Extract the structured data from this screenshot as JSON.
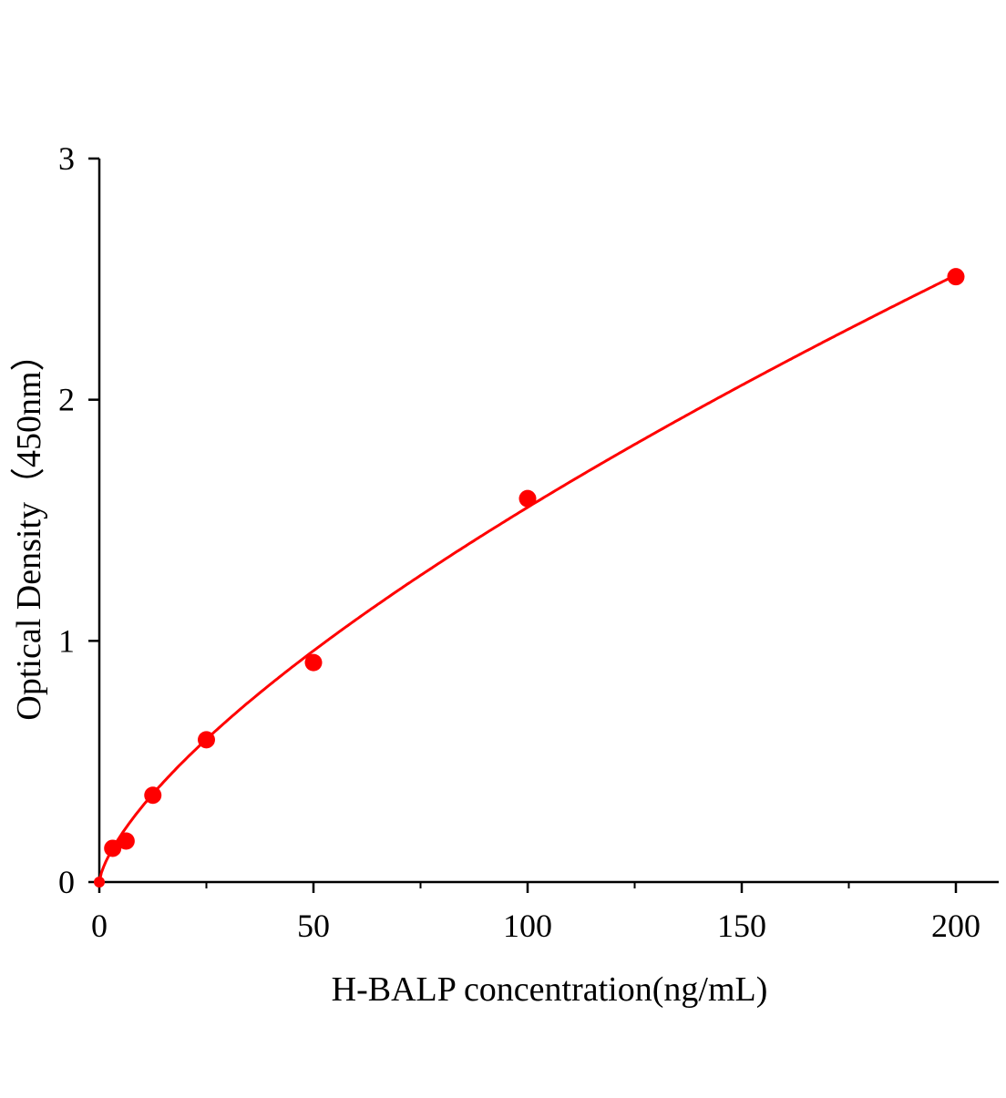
{
  "chart_data": {
    "type": "scatter",
    "title": "",
    "xlabel": "H-BALP concentration(ng/mL)",
    "ylabel": "Optical Density（450nm）",
    "xlim": [
      0,
      210
    ],
    "ylim": [
      0,
      3
    ],
    "x_ticks": [
      "0",
      "50",
      "100",
      "150",
      "200"
    ],
    "y_ticks": [
      "0",
      "1",
      "2",
      "3"
    ],
    "grid": false,
    "legend": "none",
    "color": "#ff0000",
    "fit_line": true,
    "x": [
      0,
      3.125,
      6.25,
      12.5,
      25,
      50,
      100,
      200
    ],
    "y": [
      0.0,
      0.14,
      0.17,
      0.36,
      0.59,
      0.91,
      1.59,
      2.51
    ]
  }
}
